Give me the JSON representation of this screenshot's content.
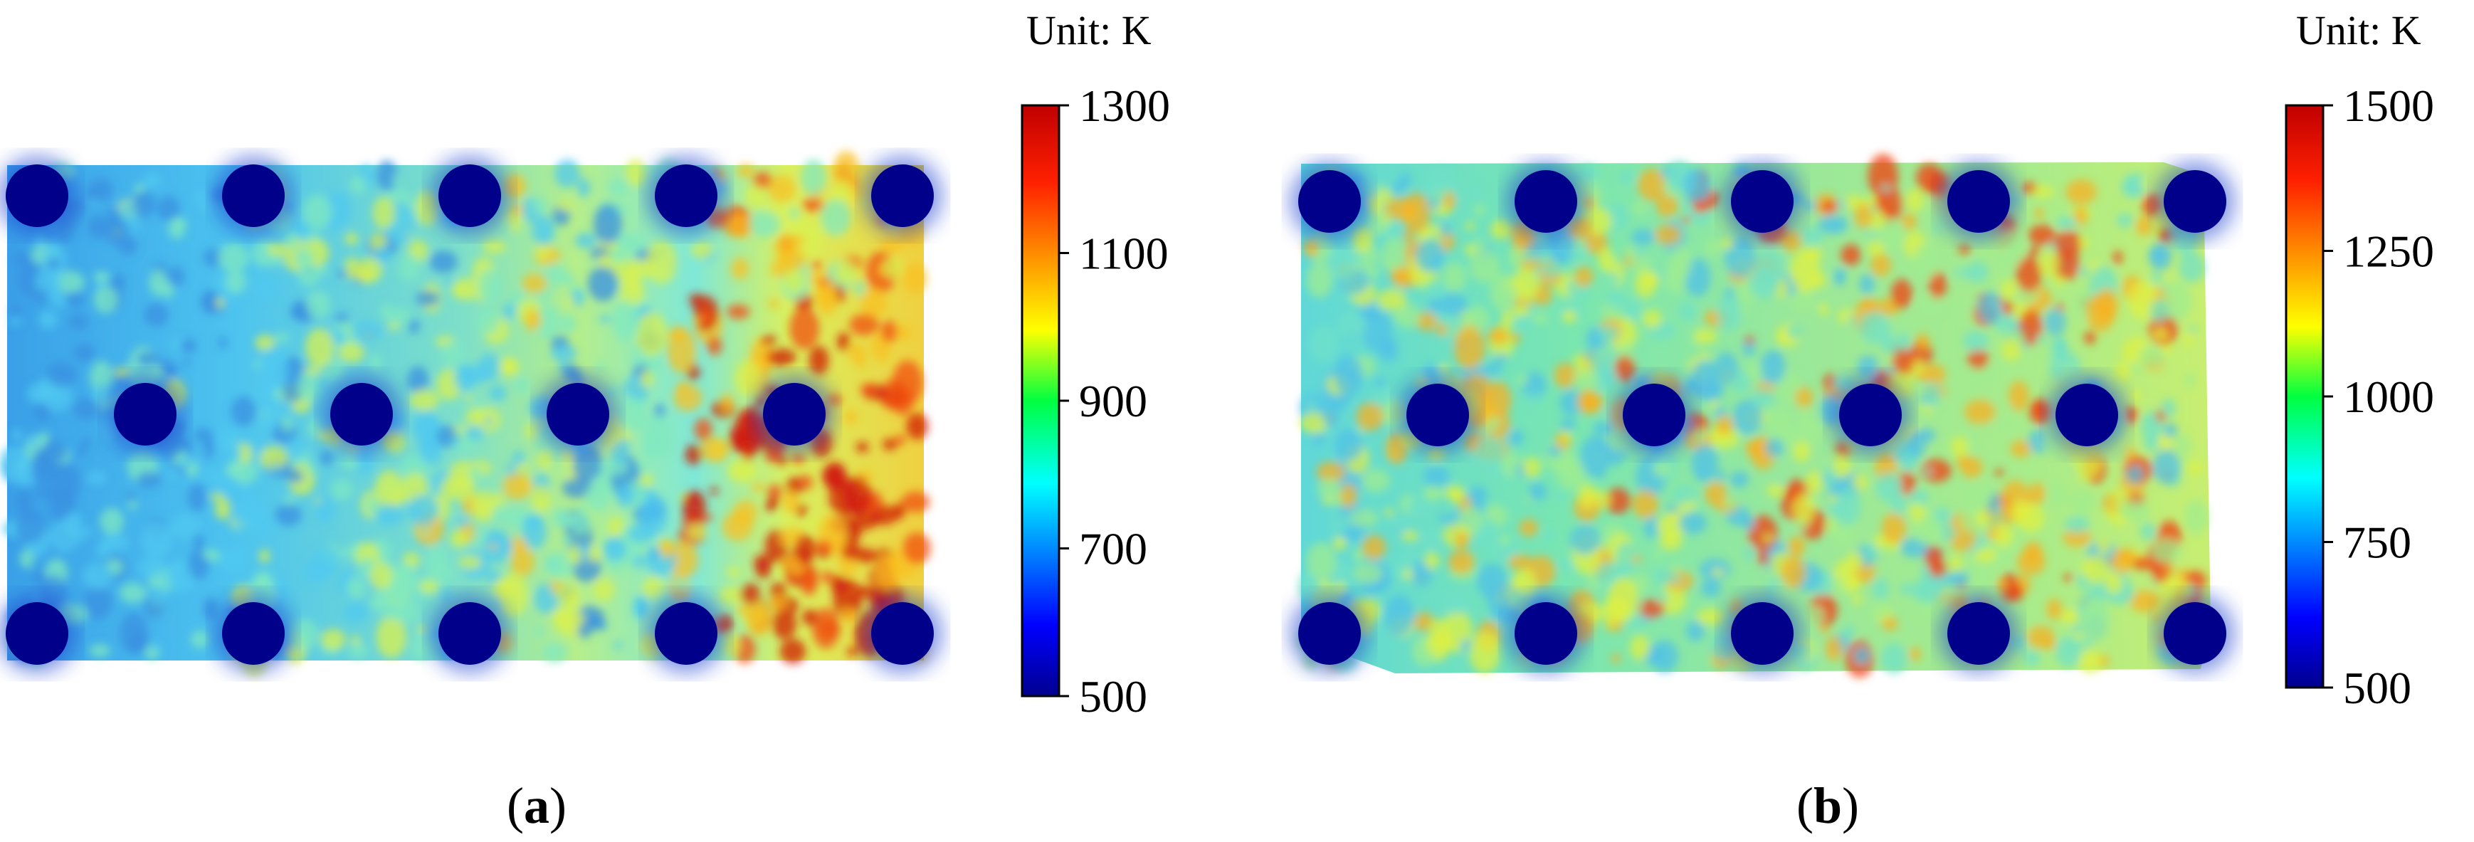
{
  "chart_data": [
    {
      "type": "heatmap",
      "panel_label": "a",
      "colorbar": {
        "unit_label": "Unit:  K",
        "ticks": [
          "500",
          "700",
          "900",
          "1100",
          "1300"
        ],
        "min": 500,
        "max": 1300
      },
      "holes": [
        {
          "col": 0,
          "row": 0
        },
        {
          "col": 2,
          "row": 0
        },
        {
          "col": 4,
          "row": 0
        },
        {
          "col": 6,
          "row": 0
        },
        {
          "col": 8,
          "row": 0
        },
        {
          "col": 1,
          "row": 1
        },
        {
          "col": 3,
          "row": 1
        },
        {
          "col": 5,
          "row": 1
        },
        {
          "col": 7,
          "row": 1
        },
        {
          "col": 0,
          "row": 2
        },
        {
          "col": 2,
          "row": 2
        },
        {
          "col": 4,
          "row": 2
        },
        {
          "col": 6,
          "row": 2
        },
        {
          "col": 8,
          "row": 2
        }
      ],
      "colormap": "jet"
    },
    {
      "type": "heatmap",
      "panel_label": "b",
      "colorbar": {
        "unit_label": "Unit:  K",
        "ticks": [
          "500",
          "750",
          "1000",
          "1250",
          "1500"
        ],
        "min": 500,
        "max": 1500
      },
      "holes": [
        {
          "col": 0,
          "row": 0
        },
        {
          "col": 2,
          "row": 0
        },
        {
          "col": 4,
          "row": 0
        },
        {
          "col": 6,
          "row": 0
        },
        {
          "col": 8,
          "row": 0
        },
        {
          "col": 1,
          "row": 1
        },
        {
          "col": 3,
          "row": 1
        },
        {
          "col": 5,
          "row": 1
        },
        {
          "col": 7,
          "row": 1
        },
        {
          "col": 0,
          "row": 2
        },
        {
          "col": 2,
          "row": 2
        },
        {
          "col": 4,
          "row": 2
        },
        {
          "col": 6,
          "row": 2
        },
        {
          "col": 8,
          "row": 2
        }
      ],
      "colormap": "jet"
    }
  ]
}
